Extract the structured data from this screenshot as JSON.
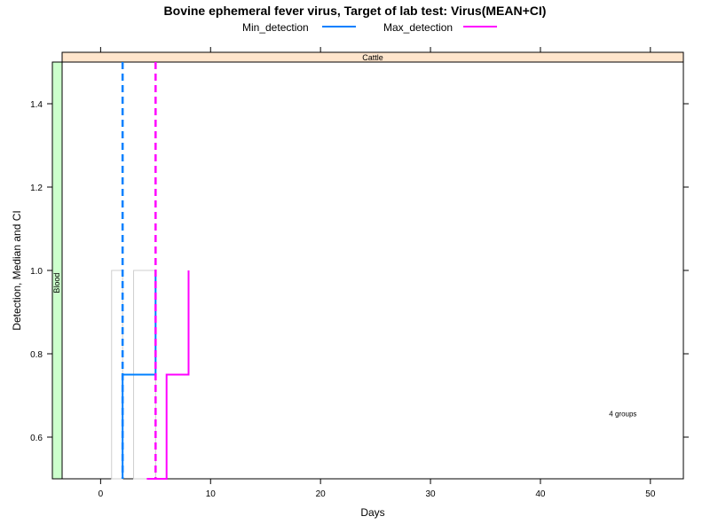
{
  "chart_data": {
    "type": "line",
    "title": "Bovine ephemeral fever virus, Target of lab test: Virus(MEAN+CI)",
    "xlabel": "Days",
    "ylabel": "Detection, Median and CI",
    "xlim": [
      -3.5,
      53
    ],
    "ylim": [
      0.5,
      1.5
    ],
    "xticks": [
      0,
      10,
      20,
      30,
      40,
      50
    ],
    "yticks": [
      0.6,
      0.8,
      1.0,
      1.2,
      1.4
    ],
    "xtick_labels": [
      "0",
      "10",
      "20",
      "30",
      "40",
      "50"
    ],
    "ytick_labels": [
      "0.6",
      "0.8",
      "1.0",
      "1.2",
      "1.4"
    ],
    "strip_top": "Cattle",
    "strip_left": "Blood",
    "annotation": "4 groups",
    "legend_position": "top",
    "legend": [
      {
        "name": "Min_detection",
        "color": "#0080ff"
      },
      {
        "name": "Max_detection",
        "color": "#ff00ff"
      }
    ],
    "series": [
      {
        "name": "Min_detection",
        "color": "#0080ff",
        "median_day": 2,
        "steps": [
          [
            2,
            0.5
          ],
          [
            2,
            0.75
          ],
          [
            5,
            0.75
          ],
          [
            5,
            1.0
          ]
        ],
        "ci_boxes": [
          {
            "x0": 1,
            "x1": 2,
            "y": 1.0
          },
          {
            "x0": 3,
            "x1": 5,
            "y": 1.0
          }
        ]
      },
      {
        "name": "Max_detection",
        "color": "#ff00ff",
        "median_day": 5,
        "steps": [
          [
            4.2,
            0.5
          ],
          [
            6,
            0.5
          ],
          [
            6,
            0.75
          ],
          [
            8,
            0.75
          ],
          [
            8,
            1.0
          ]
        ],
        "ci_boxes": []
      }
    ]
  }
}
